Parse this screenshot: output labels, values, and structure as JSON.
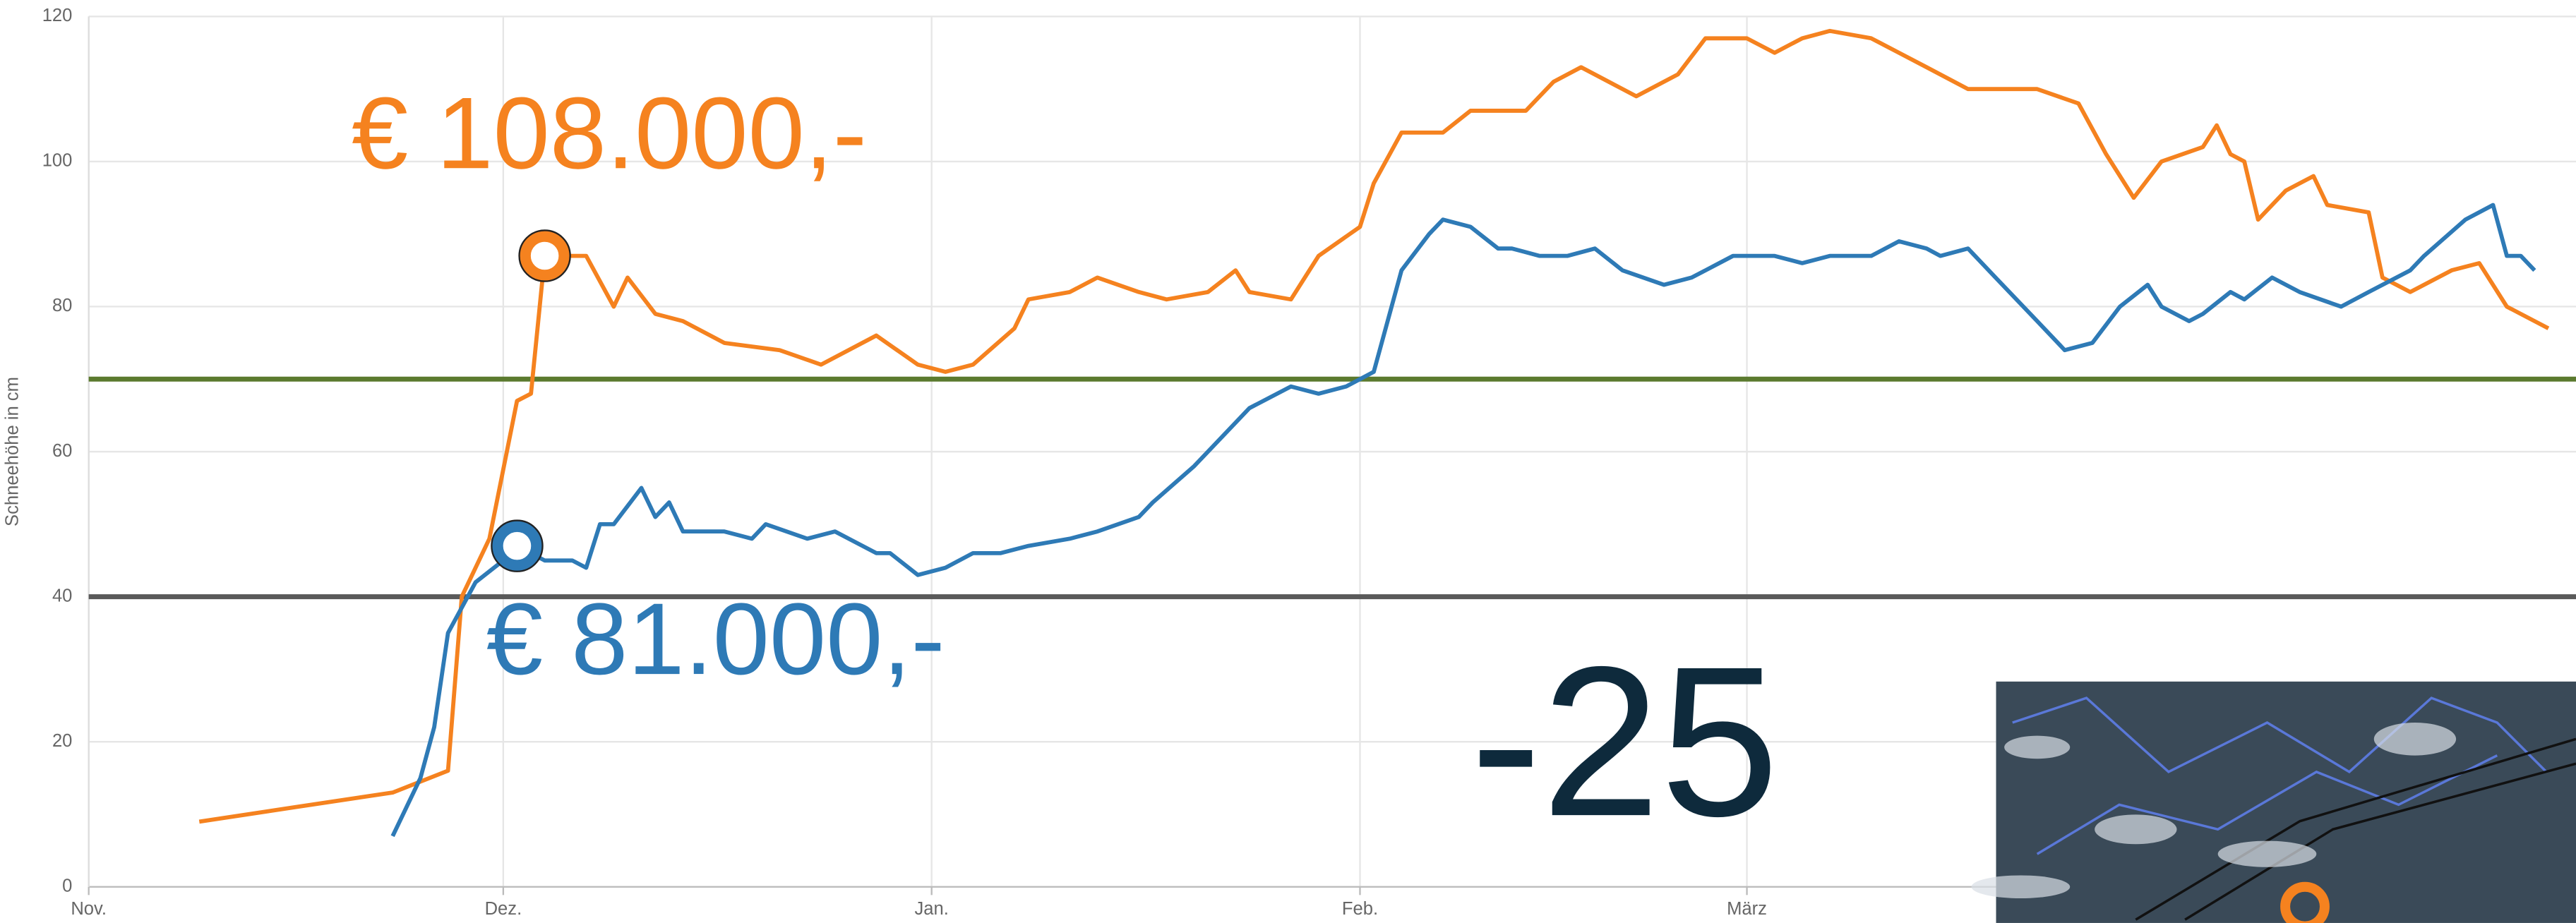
{
  "chart_data": {
    "type": "line",
    "y_label": "Schneehöhe in cm",
    "xlim": [
      0,
      180
    ],
    "xticks": [
      {
        "value": 0,
        "label": "Nov."
      },
      {
        "value": 30,
        "label": "Dez."
      },
      {
        "value": 61,
        "label": "Jan."
      },
      {
        "value": 92,
        "label": "Feb."
      },
      {
        "value": 120,
        "label": "März"
      }
    ],
    "ylim": [
      0,
      120
    ],
    "yticks": [
      0,
      20,
      40,
      60,
      80,
      100,
      120
    ],
    "grid": true,
    "series": [
      {
        "color": "#f5821f",
        "x": [
          8,
          15,
          22,
          26,
          27,
          29,
          31,
          32,
          33,
          36,
          38,
          39,
          41,
          43,
          46,
          50,
          53,
          57,
          60,
          62,
          64,
          67,
          68,
          71,
          73,
          76,
          78,
          81,
          83,
          84,
          87,
          89,
          92,
          93,
          95,
          98,
          100,
          104,
          106,
          108,
          112,
          115,
          117,
          120,
          122,
          124,
          126,
          129,
          131,
          133,
          136,
          141,
          144,
          146,
          148,
          150,
          153,
          154,
          155,
          156,
          157,
          159,
          161,
          162,
          165,
          166,
          168,
          171,
          173,
          175,
          178
        ],
        "values": [
          9,
          11,
          13,
          16,
          40,
          48,
          67,
          68,
          87,
          87,
          80,
          84,
          79,
          78,
          75,
          74,
          72,
          76,
          72,
          71,
          72,
          77,
          81,
          82,
          84,
          82,
          81,
          82,
          85,
          82,
          81,
          87,
          91,
          97,
          104,
          104,
          107,
          107,
          111,
          113,
          109,
          112,
          117,
          117,
          115,
          117,
          118,
          117,
          115,
          113,
          110,
          110,
          108,
          101,
          95,
          100,
          102,
          105,
          101,
          100,
          92,
          96,
          98,
          94,
          93,
          84,
          82,
          85,
          86,
          80,
          77
        ]
      },
      {
        "color": "#2e7ab6",
        "x": [
          22,
          24,
          25,
          26,
          28,
          30,
          31,
          33,
          35,
          36,
          37,
          38,
          40,
          41,
          42,
          43,
          46,
          48,
          49,
          52,
          54,
          57,
          58,
          60,
          62,
          64,
          66,
          68,
          71,
          73,
          76,
          77,
          80,
          84,
          87,
          89,
          91,
          93,
          95,
          97,
          98,
          100,
          102,
          103,
          105,
          107,
          109,
          111,
          114,
          116,
          118,
          119,
          122,
          124,
          126,
          129,
          131,
          133,
          134,
          136,
          138,
          141,
          143,
          145,
          147,
          149,
          150,
          152,
          153,
          155,
          156,
          158,
          160,
          163,
          165,
          168,
          169,
          172,
          174,
          175,
          176,
          177
        ],
        "values": [
          7,
          15,
          22,
          35,
          42,
          45,
          47,
          45,
          45,
          44,
          50,
          50,
          55,
          51,
          53,
          49,
          49,
          48,
          50,
          48,
          49,
          46,
          46,
          43,
          44,
          46,
          46,
          47,
          48,
          49,
          51,
          53,
          58,
          66,
          69,
          68,
          69,
          71,
          85,
          90,
          92,
          91,
          88,
          88,
          87,
          87,
          88,
          85,
          83,
          84,
          86,
          87,
          87,
          86,
          87,
          87,
          89,
          88,
          87,
          88,
          84,
          78,
          74,
          75,
          80,
          83,
          80,
          78,
          79,
          82,
          81,
          84,
          82,
          80,
          82,
          85,
          87,
          92,
          94,
          87,
          87,
          85
        ]
      }
    ],
    "highlights": [
      {
        "series": 0,
        "index": 8
      },
      {
        "series": 1,
        "index": 6
      }
    ],
    "reference_lines": [
      {
        "value": 70,
        "color": "#5b7a2e"
      },
      {
        "value": 40,
        "color": "#5a5a5a"
      }
    ],
    "annotations": [
      {
        "text": "€ 108.000,-",
        "color": "#f5821f"
      },
      {
        "text": "€ 81.000,-",
        "color": "#2e7ab6"
      },
      {
        "text": "-25",
        "color": "#0e2a3c"
      }
    ]
  }
}
